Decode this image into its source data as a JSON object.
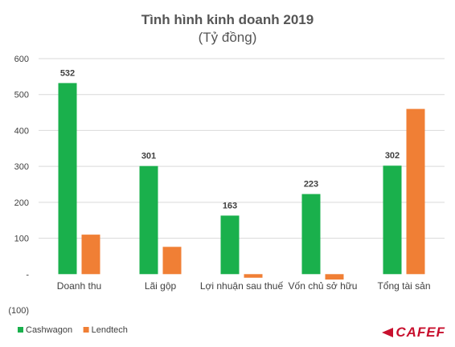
{
  "chart_data": {
    "type": "bar",
    "title": "Tình hình kinh doanh 2019",
    "subtitle": "(Tỷ đồng)",
    "xlabel": "",
    "ylabel": "",
    "ylim": [
      -100,
      600
    ],
    "ytick_values": [
      -100,
      0,
      100,
      200,
      300,
      400,
      500,
      600
    ],
    "ytick_labels": [
      "(100)",
      "-",
      "100",
      "200",
      "300",
      "400",
      "500",
      "600"
    ],
    "grid": true,
    "legend_position": "bottom-left",
    "categories": [
      "Doanh thu",
      "Lãi gộp",
      "Lợi nhuận sau thuế",
      "Vốn chủ sở hữu",
      "Tổng tài sản"
    ],
    "series": [
      {
        "name": "Cashwagon",
        "color": "#1ab04c",
        "values": [
          532,
          301,
          163,
          223,
          302
        ],
        "data_labels": [
          "532",
          "301",
          "163",
          "223",
          "302"
        ]
      },
      {
        "name": "Lendtech",
        "color": "#f07f35",
        "values": [
          110,
          76,
          -10,
          -15,
          460
        ]
      }
    ]
  },
  "logo": {
    "text": "CAFEF"
  }
}
